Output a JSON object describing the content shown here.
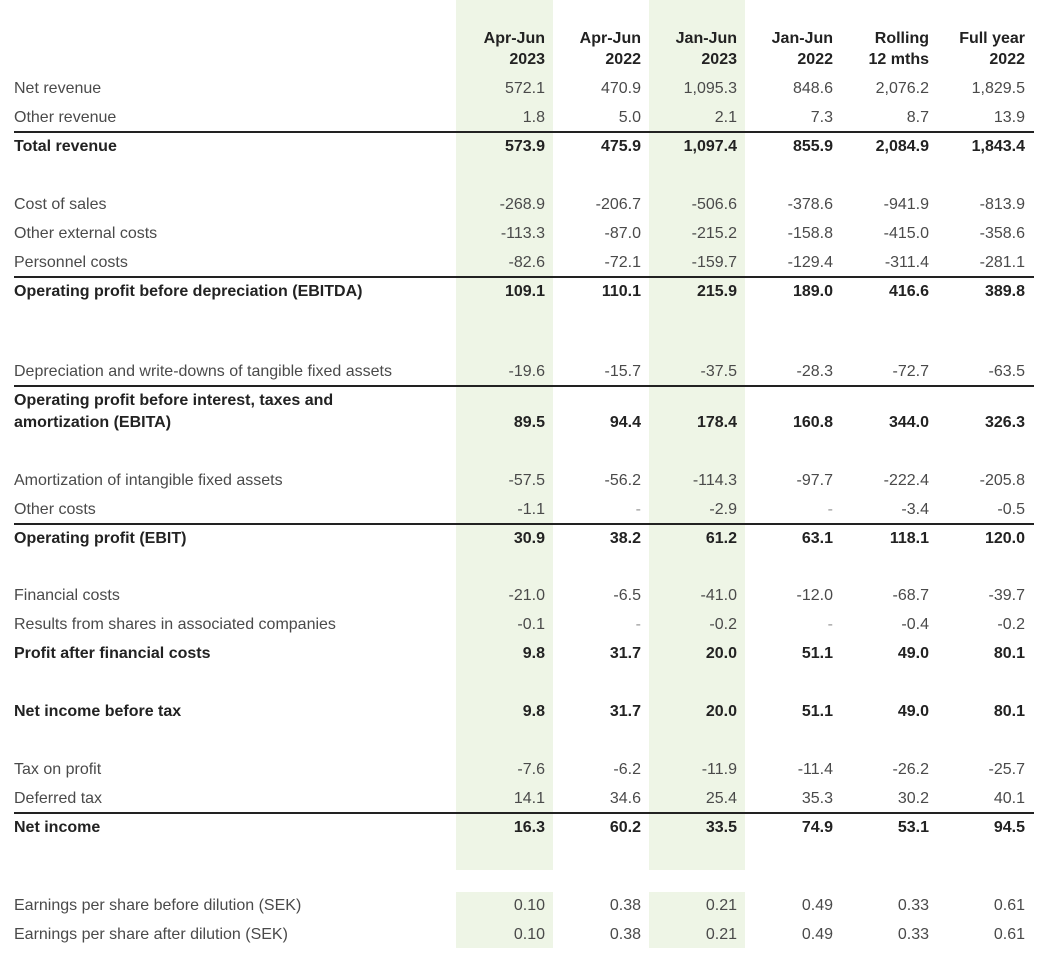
{
  "table": {
    "headers": [
      {
        "line1": "Apr-Jun",
        "line2": "2023"
      },
      {
        "line1": "Apr-Jun",
        "line2": "2022"
      },
      {
        "line1": "Jan-Jun",
        "line2": "2023"
      },
      {
        "line1": "Jan-Jun",
        "line2": "2022"
      },
      {
        "line1": "Rolling",
        "line2": "12 mths"
      },
      {
        "line1": "Full year",
        "line2": "2022"
      }
    ],
    "rows": [
      {
        "label": "Net revenue",
        "values": [
          "572.1",
          "470.9",
          "1,095.3",
          "848.6",
          "2,076.2",
          "1,829.5"
        ]
      },
      {
        "label": "Other revenue",
        "values": [
          "1.8",
          "5.0",
          "2.1",
          "7.3",
          "8.7",
          "13.9"
        ]
      },
      {
        "label": "Total revenue",
        "values": [
          "573.9",
          "475.9",
          "1,097.4",
          "855.9",
          "2,084.9",
          "1,843.4"
        ]
      },
      {
        "label": "Cost of sales",
        "values": [
          "-268.9",
          "-206.7",
          "-506.6",
          "-378.6",
          "-941.9",
          "-813.9"
        ]
      },
      {
        "label": "Other external costs",
        "values": [
          "-113.3",
          "-87.0",
          "-215.2",
          "-158.8",
          "-415.0",
          "-358.6"
        ]
      },
      {
        "label": "Personnel costs",
        "values": [
          "-82.6",
          "-72.1",
          "-159.7",
          "-129.4",
          "-311.4",
          "-281.1"
        ]
      },
      {
        "label": "Operating profit before depreciation (EBITDA)",
        "values": [
          "109.1",
          "110.1",
          "215.9",
          "189.0",
          "416.6",
          "389.8"
        ]
      },
      {
        "label": "Depreciation and write-downs of tangible fixed assets",
        "values": [
          "-19.6",
          "-15.7",
          "-37.5",
          "-28.3",
          "-72.7",
          "-63.5"
        ]
      },
      {
        "label": "Operating profit before interest, taxes and amortization (EBITA)",
        "values": [
          "89.5",
          "94.4",
          "178.4",
          "160.8",
          "344.0",
          "326.3"
        ]
      },
      {
        "label": "Amortization of intangible fixed assets",
        "values": [
          "-57.5",
          "-56.2",
          "-114.3",
          "-97.7",
          "-222.4",
          "-205.8"
        ]
      },
      {
        "label": "Other costs",
        "values": [
          "-1.1",
          "-",
          "-2.9",
          "-",
          "-3.4",
          "-0.5"
        ]
      },
      {
        "label": "Operating profit (EBIT)",
        "values": [
          "30.9",
          "38.2",
          "61.2",
          "63.1",
          "118.1",
          "120.0"
        ]
      },
      {
        "label": "Financial costs",
        "values": [
          "-21.0",
          "-6.5",
          "-41.0",
          "-12.0",
          "-68.7",
          "-39.7"
        ]
      },
      {
        "label": "Results from shares in associated companies",
        "values": [
          "-0.1",
          "-",
          "-0.2",
          "-",
          "-0.4",
          "-0.2"
        ]
      },
      {
        "label": "Profit after financial costs",
        "values": [
          "9.8",
          "31.7",
          "20.0",
          "51.1",
          "49.0",
          "80.1"
        ]
      },
      {
        "label": "Net income before tax",
        "values": [
          "9.8",
          "31.7",
          "20.0",
          "51.1",
          "49.0",
          "80.1"
        ]
      },
      {
        "label": "Tax on profit",
        "values": [
          "-7.6",
          "-6.2",
          "-11.9",
          "-11.4",
          "-26.2",
          "-25.7"
        ]
      },
      {
        "label": "Deferred tax",
        "values": [
          "14.1",
          "34.6",
          "25.4",
          "35.3",
          "30.2",
          "40.1"
        ]
      },
      {
        "label": "Net income",
        "values": [
          "16.3",
          "60.2",
          "33.5",
          "74.9",
          "53.1",
          "94.5"
        ]
      },
      {
        "label": "Earnings per share before dilution (SEK)",
        "values": [
          "0.10",
          "0.38",
          "0.21",
          "0.49",
          "0.33",
          "0.61"
        ]
      },
      {
        "label": "Earnings per share after dilution (SEK)",
        "values": [
          "0.10",
          "0.38",
          "0.21",
          "0.49",
          "0.33",
          "0.61"
        ]
      }
    ]
  }
}
